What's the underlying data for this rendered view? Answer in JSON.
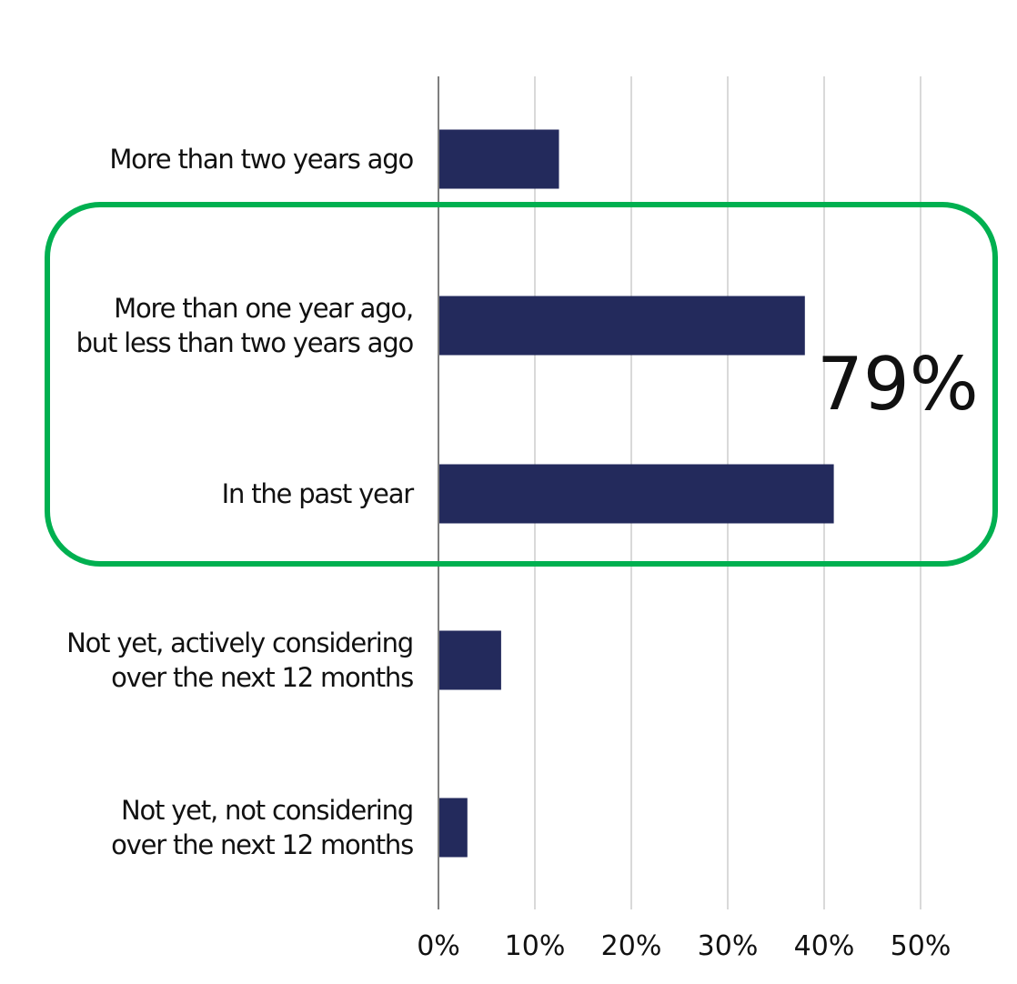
{
  "chart_data": {
    "type": "bar",
    "orientation": "horizontal",
    "categories": [
      [
        "More than two years ago"
      ],
      [
        "More than one year ago,",
        "but less than two years ago"
      ],
      [
        "In the past year"
      ],
      [
        "Not yet, actively considering",
        "over the next 12 months"
      ],
      [
        "Not yet, not considering",
        "over the next 12 months"
      ]
    ],
    "values": [
      12.5,
      38,
      41,
      6.5,
      3
    ],
    "xlim": [
      0,
      50
    ],
    "xticks": [
      0,
      10,
      20,
      30,
      40,
      50
    ],
    "xtick_labels": [
      "0%",
      "10%",
      "20%",
      "30%",
      "40%",
      "50%"
    ],
    "grid": true,
    "bar_color": "#232A5C",
    "highlight": {
      "categories": [
        1,
        2
      ],
      "label": "79%",
      "color": "#00B050"
    }
  }
}
